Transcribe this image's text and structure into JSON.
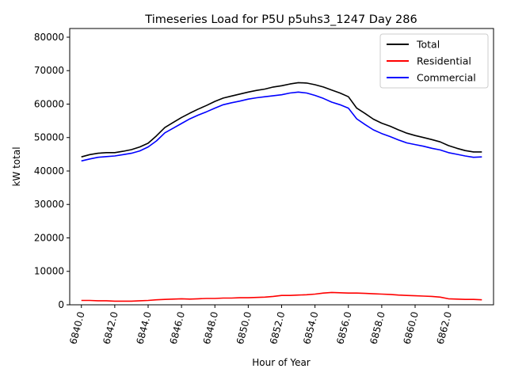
{
  "chart_data": {
    "type": "line",
    "title": "Timeseries Load for P5U p5uhs3_1247  Day 286",
    "xlabel": "Hour of Year",
    "ylabel": "kW total",
    "xlim": [
      6839.3,
      6864.7
    ],
    "ylim": [
      0,
      82600
    ],
    "xticks": [
      6840,
      6842,
      6844,
      6846,
      6848,
      6850,
      6852,
      6854,
      6856,
      6858,
      6860,
      6862
    ],
    "xtick_labels": [
      "6840.0",
      "6842.0",
      "6844.0",
      "6846.0",
      "6848.0",
      "6850.0",
      "6852.0",
      "6854.0",
      "6856.0",
      "6858.0",
      "6860.0",
      "6862.0"
    ],
    "yticks": [
      0,
      10000,
      20000,
      30000,
      40000,
      50000,
      60000,
      70000,
      80000
    ],
    "ytick_labels": [
      "0",
      "10000",
      "20000",
      "30000",
      "40000",
      "50000",
      "60000",
      "70000",
      "80000"
    ],
    "legend_position": "top-right",
    "x": [
      6840,
      6840.5,
      6841,
      6841.5,
      6842,
      6842.5,
      6843,
      6843.5,
      6844,
      6844.5,
      6845,
      6845.5,
      6846,
      6846.5,
      6847,
      6847.5,
      6848,
      6848.5,
      6849,
      6849.5,
      6850,
      6850.5,
      6851,
      6851.5,
      6852,
      6852.5,
      6853,
      6853.5,
      6854,
      6854.5,
      6855,
      6855.5,
      6856,
      6856.5,
      6857,
      6857.5,
      6858,
      6858.5,
      6859,
      6859.5,
      6860,
      6860.5,
      6861,
      6861.5,
      6862,
      6862.5,
      6863,
      6863.5,
      6864
    ],
    "series": [
      {
        "name": "Total",
        "color": "#000000",
        "values": [
          44200,
          44900,
          45300,
          45500,
          45500,
          45900,
          46400,
          47200,
          48300,
          50500,
          53000,
          54500,
          56000,
          57300,
          58500,
          59600,
          60800,
          61800,
          62400,
          63000,
          63600,
          64100,
          64500,
          65100,
          65500,
          66000,
          66400,
          66300,
          65800,
          65100,
          64200,
          63300,
          62200,
          58800,
          57200,
          55500,
          54300,
          53400,
          52300,
          51300,
          50600,
          50000,
          49400,
          48700,
          47600,
          46800,
          46100,
          45700,
          45700
        ]
      },
      {
        "name": "Residential",
        "color": "#ff0000",
        "values": [
          1300,
          1300,
          1200,
          1200,
          1100,
          1100,
          1100,
          1200,
          1300,
          1500,
          1600,
          1700,
          1800,
          1700,
          1800,
          1900,
          1900,
          2000,
          2000,
          2100,
          2100,
          2200,
          2300,
          2500,
          2800,
          2800,
          2900,
          3000,
          3200,
          3500,
          3700,
          3600,
          3500,
          3500,
          3400,
          3300,
          3200,
          3100,
          2900,
          2800,
          2700,
          2600,
          2500,
          2300,
          1800,
          1700,
          1600,
          1600,
          1500
        ]
      },
      {
        "name": "Commercial",
        "color": "#0000ff",
        "values": [
          43000,
          43600,
          44100,
          44300,
          44500,
          44900,
          45300,
          46000,
          47200,
          49000,
          51400,
          52800,
          54200,
          55600,
          56700,
          57700,
          58800,
          59800,
          60400,
          60900,
          61500,
          61900,
          62200,
          62500,
          62800,
          63300,
          63600,
          63300,
          62600,
          61700,
          60600,
          59800,
          58800,
          55600,
          53900,
          52300,
          51200,
          50300,
          49300,
          48400,
          47900,
          47400,
          46800,
          46300,
          45500,
          45000,
          44500,
          44100,
          44200
        ]
      }
    ]
  }
}
